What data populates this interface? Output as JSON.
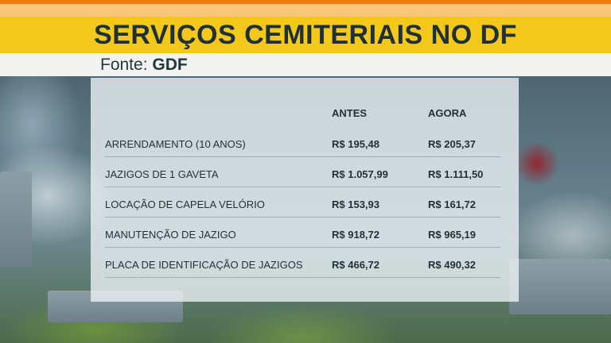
{
  "title": "SERVIÇOS CEMITERIAIS NO DF",
  "source": {
    "prefix": "Fonte:",
    "name": "GDF"
  },
  "table": {
    "headers": {
      "before": "ANTES",
      "now": "AGORA"
    },
    "rows": [
      {
        "label": "ARRENDAMENTO (10 ANOS)",
        "before": "R$ 195,48",
        "now": "R$ 205,37"
      },
      {
        "label": "JAZIGOS DE 1  GAVETA",
        "before": "R$ 1.057,99",
        "now": "R$ 1.111,50"
      },
      {
        "label": "LOCAÇÃO DE CAPELA VELÓRIO",
        "before": "R$ 153,93",
        "now": "R$ 161,72"
      },
      {
        "label": "MANUTENÇÃO DE JAZIGO",
        "before": "R$ 918,72",
        "now": "R$ 965,19"
      },
      {
        "label": "PLACA DE IDENTIFICAÇÃO DE JAZIGOS",
        "before": "R$ 466,72",
        "now": "R$ 490,32"
      }
    ]
  },
  "colors": {
    "title_bar": "#f3c81a",
    "accent_orange": "#f07a10",
    "text_dark": "#1f3136"
  }
}
